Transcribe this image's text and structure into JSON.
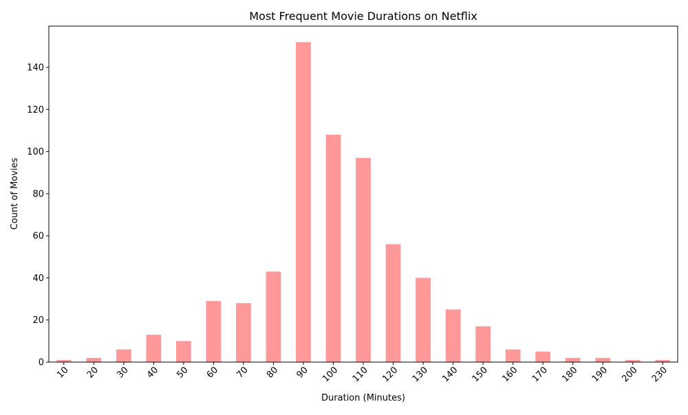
{
  "chart_data": {
    "type": "bar",
    "title": "Most Frequent Movie Durations on Netflix",
    "xlabel": "Duration (Minutes)",
    "ylabel": "Count of Movies",
    "categories": [
      "10",
      "20",
      "30",
      "40",
      "50",
      "60",
      "70",
      "80",
      "90",
      "100",
      "110",
      "120",
      "130",
      "140",
      "150",
      "160",
      "170",
      "180",
      "190",
      "200",
      "230"
    ],
    "values": [
      1,
      2,
      6,
      13,
      10,
      29,
      28,
      43,
      152,
      108,
      97,
      56,
      40,
      25,
      17,
      6,
      5,
      2,
      2,
      1,
      1
    ],
    "ylim": [
      0,
      159.6
    ],
    "yticks": [
      0,
      20,
      40,
      60,
      80,
      100,
      120,
      140
    ],
    "grid": false,
    "legend": "none",
    "bar_color": "#ff9999",
    "axis_color": "#000000"
  }
}
